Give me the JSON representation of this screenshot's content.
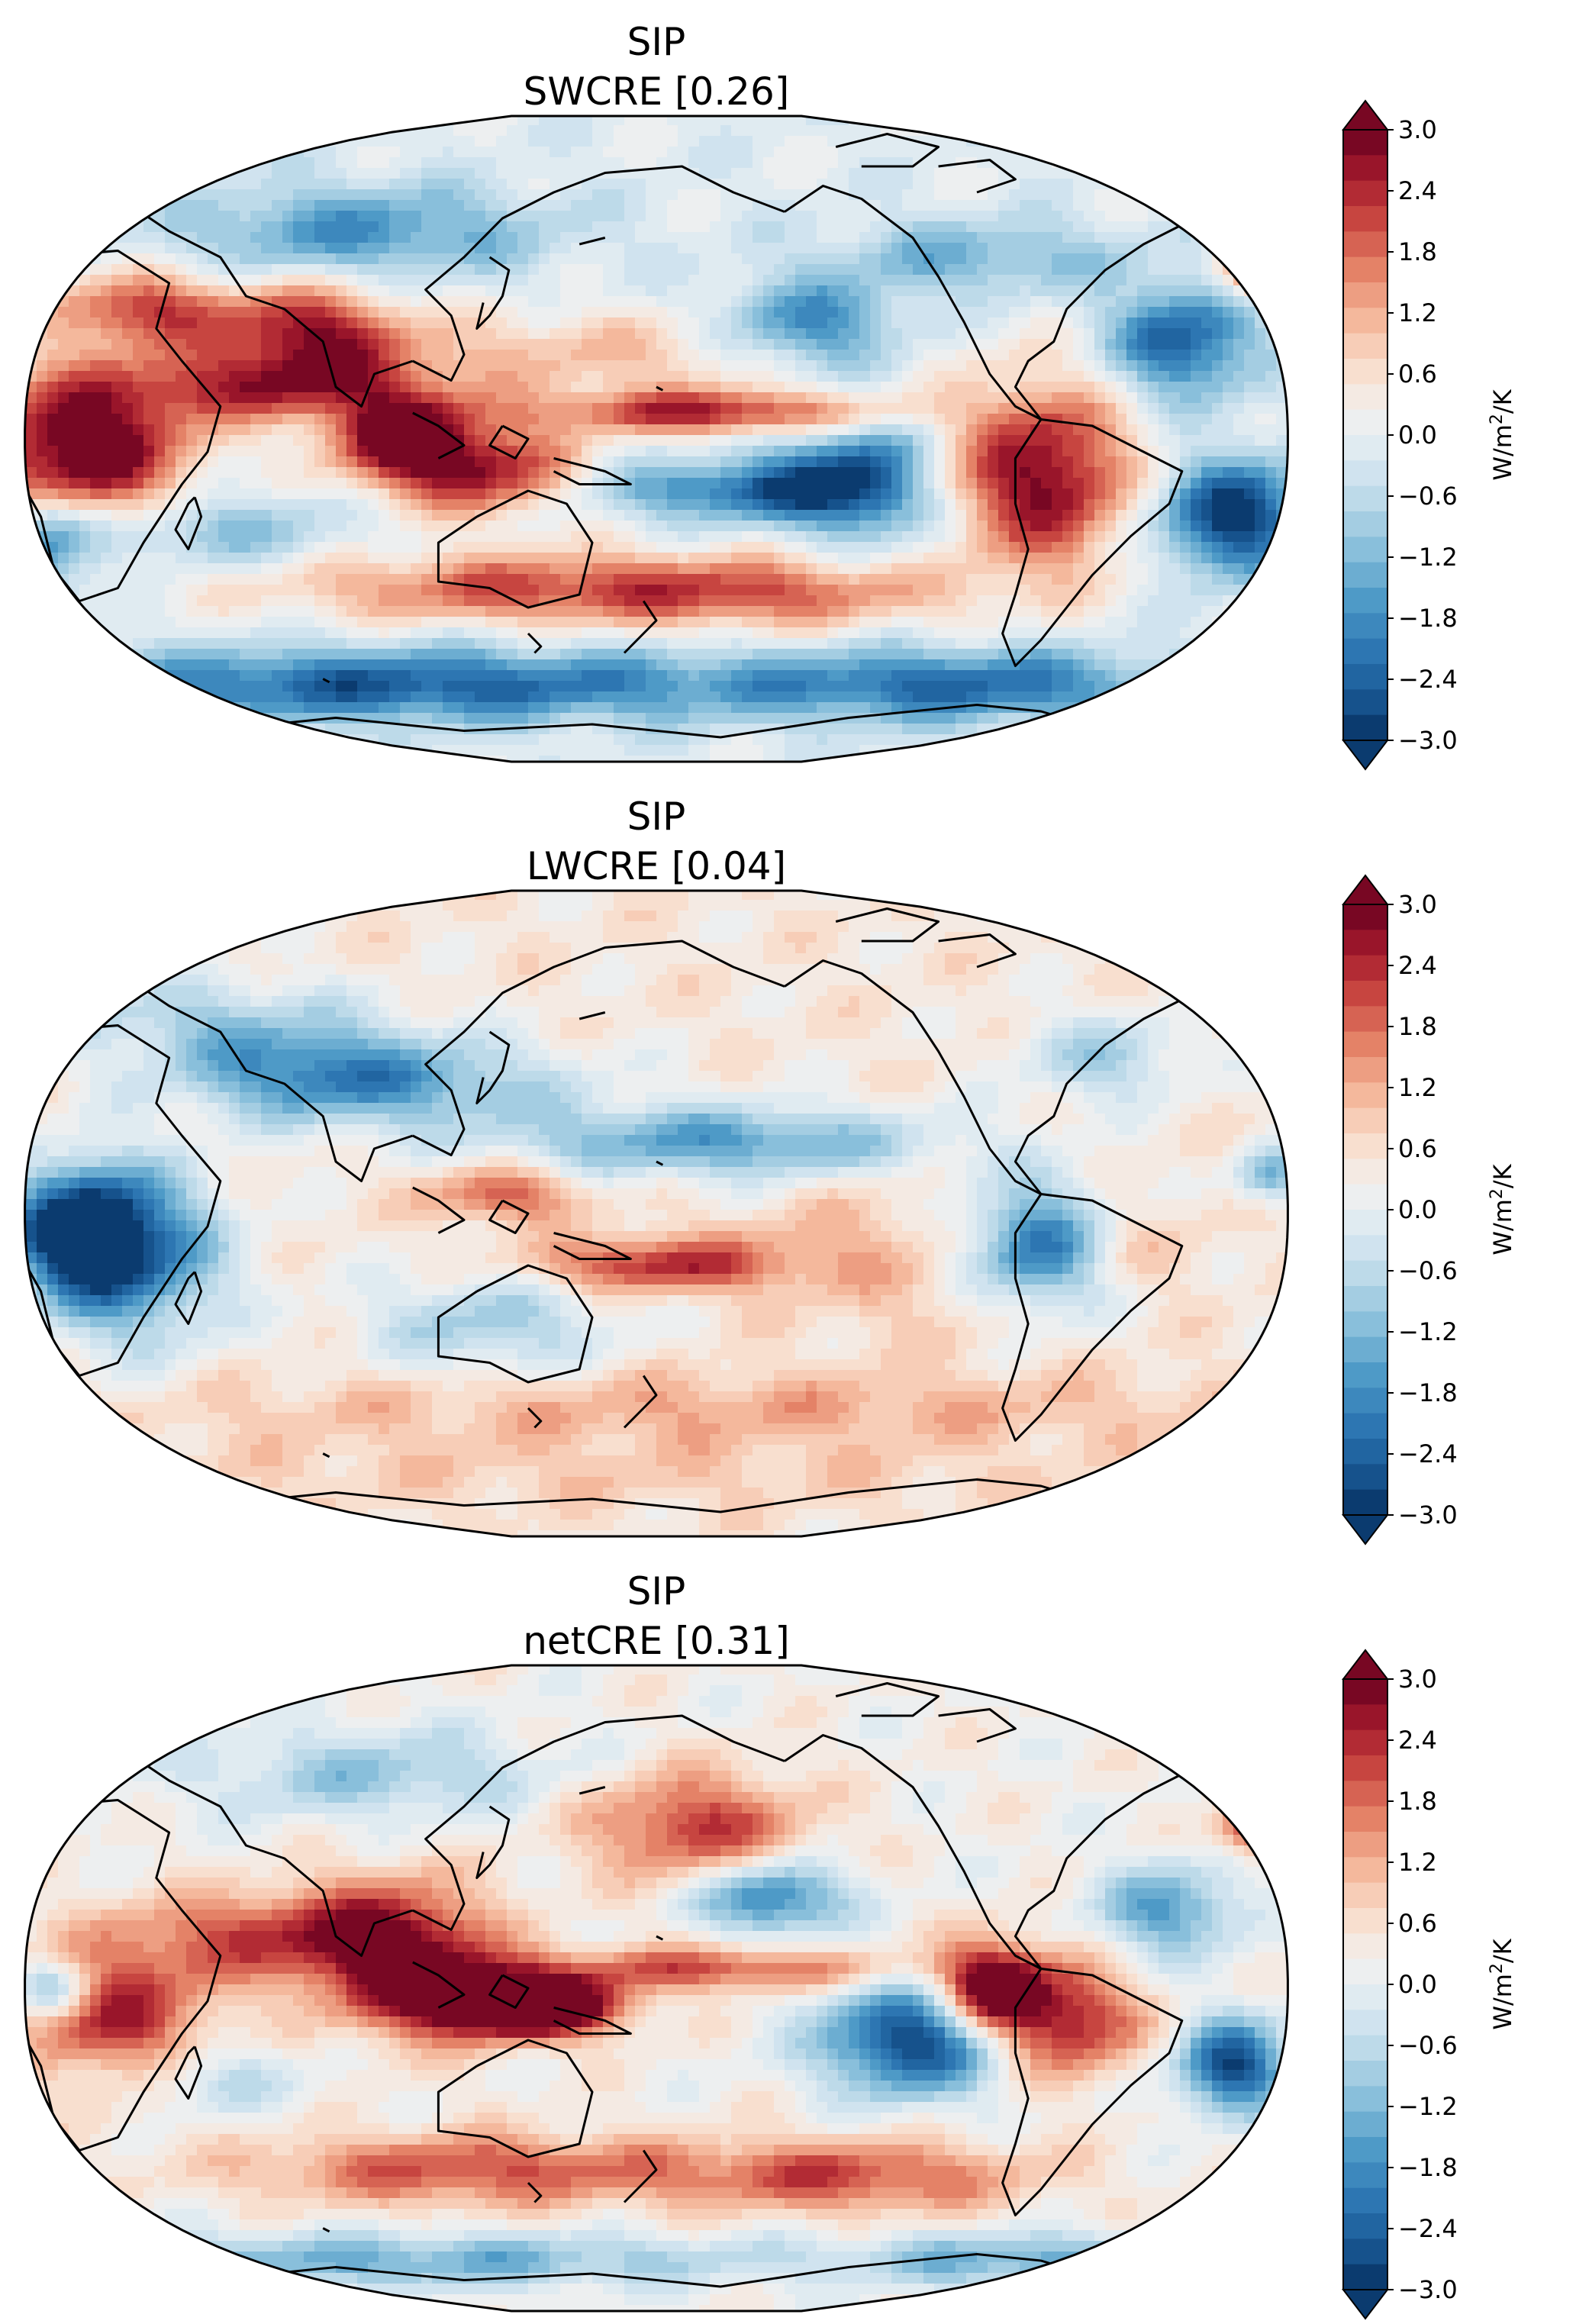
{
  "figure": {
    "panels": [
      {
        "title": "SIP",
        "subtitle": "SWCRE [0.26]",
        "map_pattern": "SWCRE"
      },
      {
        "title": "SIP",
        "subtitle": "LWCRE [0.04]",
        "map_pattern": "LWCRE"
      },
      {
        "title": "SIP",
        "subtitle": "netCRE [0.31]",
        "map_pattern": "netCRE"
      }
    ],
    "colorbar": {
      "label": "W/m²/K",
      "label_base": "W/m",
      "label_sup": "2",
      "label_tail": "/K",
      "ticks": [
        "3.0",
        "2.4",
        "1.8",
        "1.2",
        "0.6",
        "0.0",
        "−0.6",
        "−1.2",
        "−1.8",
        "−2.4",
        "−3.0"
      ],
      "range": [
        -3.0,
        3.0
      ],
      "colormap": "RdBu_r",
      "extend": "both",
      "levels": 24
    },
    "projection": "Robinson, Pacific-centred"
  }
}
